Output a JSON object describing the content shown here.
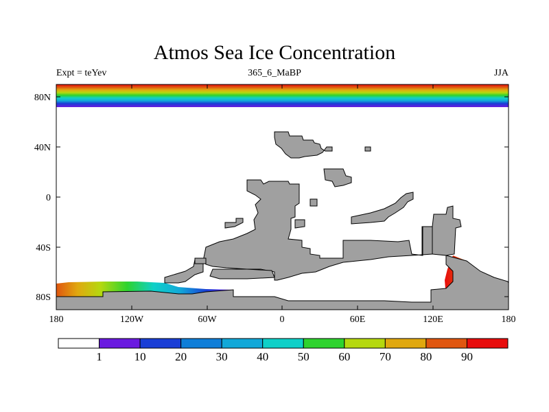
{
  "title": "Atmos Sea Ice Concentration",
  "subtitle_left": "Expt = teYev",
  "subtitle_center": "365_6_MaBP",
  "subtitle_right": "JJA",
  "map": {
    "lat_ticks": [
      "80N",
      "40N",
      "0",
      "40S",
      "80S"
    ],
    "lon_ticks": [
      "180",
      "120W",
      "60W",
      "0",
      "60E",
      "120E",
      "180"
    ],
    "land_color": "#a0a0a0"
  },
  "colorbar": {
    "labels": [
      "1",
      "10",
      "20",
      "30",
      "40",
      "50",
      "60",
      "70",
      "80",
      "90"
    ],
    "colors": [
      "#ffffff",
      "#6a1ae0",
      "#1a3ed6",
      "#0f7ed8",
      "#12a8d8",
      "#0fd0c8",
      "#2ed32e",
      "#b5d80f",
      "#e0a80f",
      "#e0560f",
      "#e80c0c"
    ]
  }
}
